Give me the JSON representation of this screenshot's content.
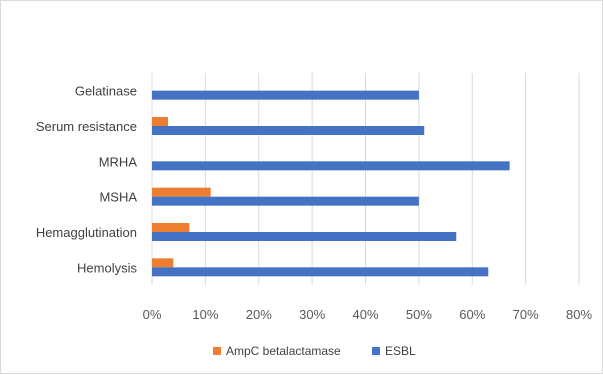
{
  "chart_data": {
    "type": "bar",
    "orientation": "horizontal",
    "categories": [
      "Gelatinase",
      "Serum resistance",
      "MRHA",
      "MSHA",
      "Hemagglutination",
      "Hemolysis"
    ],
    "series": [
      {
        "name": "AmpC betalactamase",
        "color": "#ED7D31",
        "values": [
          0,
          3,
          0,
          11,
          7,
          4
        ]
      },
      {
        "name": "ESBL",
        "color": "#4472C4",
        "values": [
          50,
          51,
          67,
          50,
          57,
          63
        ]
      }
    ],
    "x_ticks": [
      "0%",
      "10%",
      "20%",
      "30%",
      "40%",
      "50%",
      "60%",
      "70%",
      "80%"
    ],
    "xlim": [
      0,
      80
    ],
    "x_unit": "%",
    "gridlines": true,
    "legend_position": "bottom"
  }
}
